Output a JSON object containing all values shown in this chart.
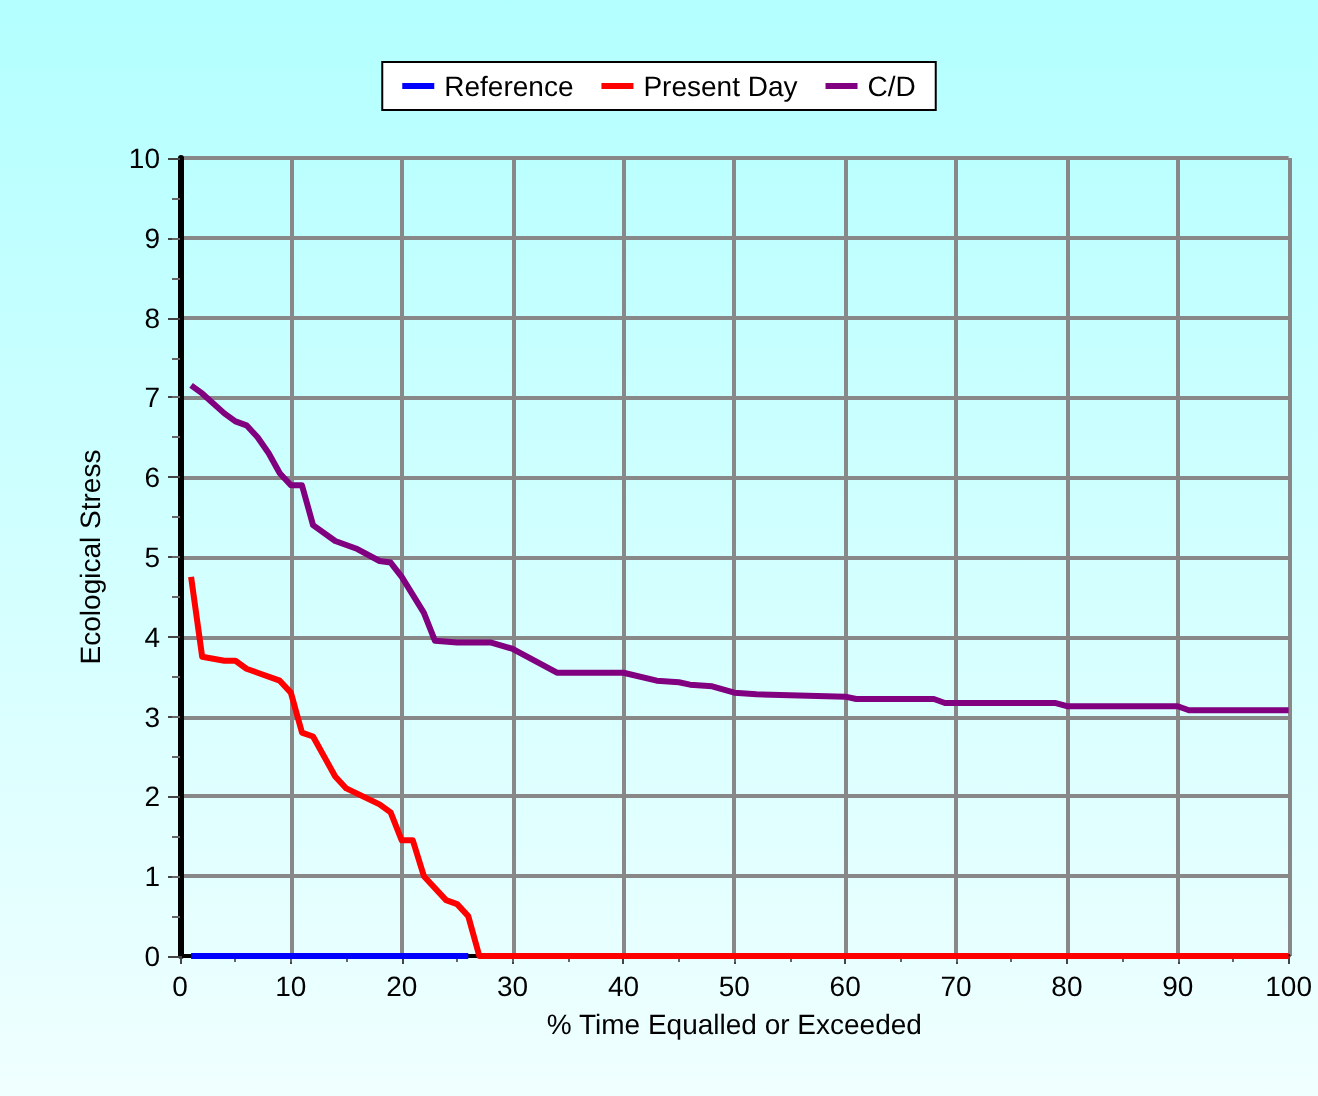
{
  "chart_data": {
    "type": "line",
    "xlabel": "% Time Equalled or Exceeded",
    "ylabel": "Ecological Stress",
    "xlim": [
      0,
      100
    ],
    "xticks": [
      0,
      10,
      20,
      30,
      40,
      50,
      60,
      70,
      80,
      90,
      100
    ],
    "ylim": [
      0,
      10
    ],
    "yticks": [
      0,
      1,
      2,
      3,
      4,
      5,
      6,
      7,
      8,
      9,
      10
    ],
    "grid": true,
    "legend": "top",
    "marker": "none",
    "line_style": "solid",
    "series": [
      {
        "name": "Reference",
        "color": "#0000ff",
        "x": [
          1,
          26
        ],
        "values": [
          0,
          0
        ]
      },
      {
        "name": "Present Day",
        "color": "#ff0000",
        "x": [
          1,
          2,
          4,
          5,
          6,
          7,
          9,
          10,
          11,
          12,
          14,
          15,
          18,
          19,
          20,
          21,
          22,
          24,
          25,
          26,
          27,
          100
        ],
        "values": [
          4.75,
          3.75,
          3.7,
          3.7,
          3.6,
          3.55,
          3.45,
          3.3,
          2.8,
          2.75,
          2.25,
          2.1,
          1.9,
          1.8,
          1.45,
          1.45,
          1.0,
          0.7,
          0.65,
          0.5,
          0,
          0
        ]
      },
      {
        "name": "C/D",
        "color": "#800080",
        "x": [
          1,
          2,
          4,
          5,
          6,
          7,
          8,
          9,
          10,
          11,
          12,
          14,
          16,
          18,
          19,
          20,
          22,
          23,
          25,
          28,
          30,
          34,
          40,
          43,
          45,
          46,
          48,
          50,
          52,
          60,
          61,
          68,
          69,
          79,
          80,
          90,
          91,
          100
        ],
        "values": [
          7.15,
          7.05,
          6.8,
          6.7,
          6.65,
          6.5,
          6.3,
          6.05,
          5.9,
          5.9,
          5.4,
          5.2,
          5.1,
          4.95,
          4.93,
          4.75,
          4.3,
          3.95,
          3.93,
          3.93,
          3.85,
          3.55,
          3.55,
          3.45,
          3.43,
          3.4,
          3.38,
          3.3,
          3.28,
          3.25,
          3.22,
          3.22,
          3.17,
          3.17,
          3.13,
          3.13,
          3.08,
          3.08
        ]
      }
    ]
  }
}
